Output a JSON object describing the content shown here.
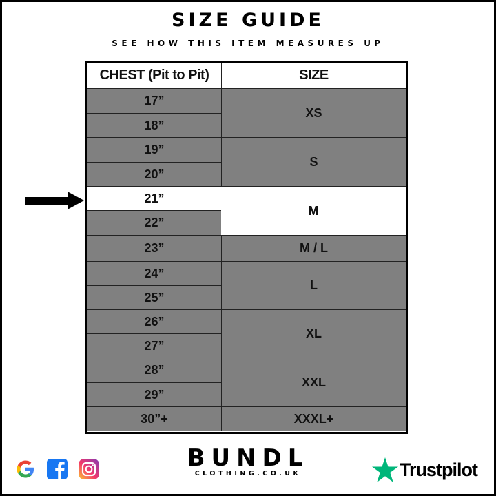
{
  "title": "SIZE GUIDE",
  "subtitle": "SEE HOW THIS ITEM MEASURES UP",
  "table": {
    "headers": [
      "CHEST (Pit to Pit)",
      "SIZE"
    ],
    "chest": [
      "17”",
      "18”",
      "19”",
      "20”",
      "21”",
      "22”",
      "23”",
      "24”",
      "25”",
      "26”",
      "27”",
      "28”",
      "29”",
      "30”+"
    ],
    "sizes": [
      {
        "label": "XS",
        "rows": [
          0,
          1
        ]
      },
      {
        "label": "S",
        "rows": [
          2,
          3
        ]
      },
      {
        "label": "M",
        "rows": [
          4,
          5
        ]
      },
      {
        "label": "M / L",
        "rows": [
          6,
          6
        ]
      },
      {
        "label": "L",
        "rows": [
          7,
          8
        ]
      },
      {
        "label": "XL",
        "rows": [
          9,
          10
        ]
      },
      {
        "label": "XXL",
        "rows": [
          11,
          12
        ]
      },
      {
        "label": "XXXL+",
        "rows": [
          13,
          13
        ]
      }
    ],
    "highlighted_chest": "21”",
    "highlighted_size": "M"
  },
  "colors": {
    "cell": "#808080",
    "highlight": "#ffffff",
    "trustpilot": "#00b67a",
    "facebook": "#1877f2"
  },
  "footer": {
    "icons": [
      "google-icon",
      "facebook-icon",
      "instagram-icon"
    ],
    "brand_name": "BUNDL",
    "brand_sub": "CLOTHING.CO.UK",
    "trustpilot": "Trustpilot"
  }
}
